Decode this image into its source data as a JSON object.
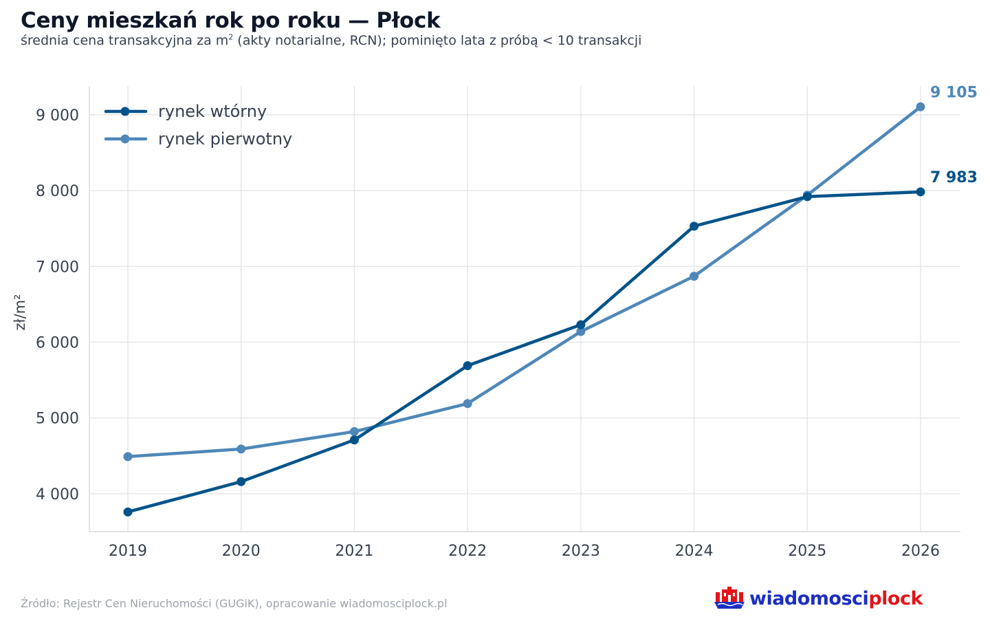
{
  "header": {
    "title": "Ceny mieszkań rok po roku — Płock",
    "subtitle_before_sup": "średnia cena transakcyjna za m",
    "subtitle_sup": "2",
    "subtitle_after_sup": " (akty notarialne, RCN); pominięto lata z próbą < 10 transakcji"
  },
  "footer": {
    "source": "Źródło: Rejestr Cen Nieruchomości (GUGiK), opracowanie wiadomosciplock.pl",
    "logo_part1": "wiadomosci",
    "logo_part2": "plock"
  },
  "chart_data": {
    "type": "line",
    "title": "Ceny mieszkań rok po roku — Płock",
    "xlabel": "",
    "ylabel": "zł/m²",
    "x": [
      "2019",
      "2020",
      "2021",
      "2022",
      "2023",
      "2024",
      "2025",
      "2026"
    ],
    "ylim": [
      3500,
      9380
    ],
    "yticks": [
      4000,
      5000,
      6000,
      7000,
      8000,
      9000
    ],
    "ytick_labels": [
      "4 000",
      "5 000",
      "6 000",
      "7 000",
      "8 000",
      "9 000"
    ],
    "grid": true,
    "legend_position": "top-left",
    "series": [
      {
        "name": "rynek wtórny",
        "color": "#00538a",
        "values": [
          3760,
          4160,
          4710,
          5690,
          6230,
          7530,
          7920,
          7983
        ],
        "end_label": "7 983"
      },
      {
        "name": "rynek pierwotny",
        "color": "#4f87b8",
        "values": [
          4490,
          4590,
          4820,
          5190,
          6140,
          6870,
          7940,
          9105
        ],
        "end_label": "9 105"
      }
    ]
  }
}
